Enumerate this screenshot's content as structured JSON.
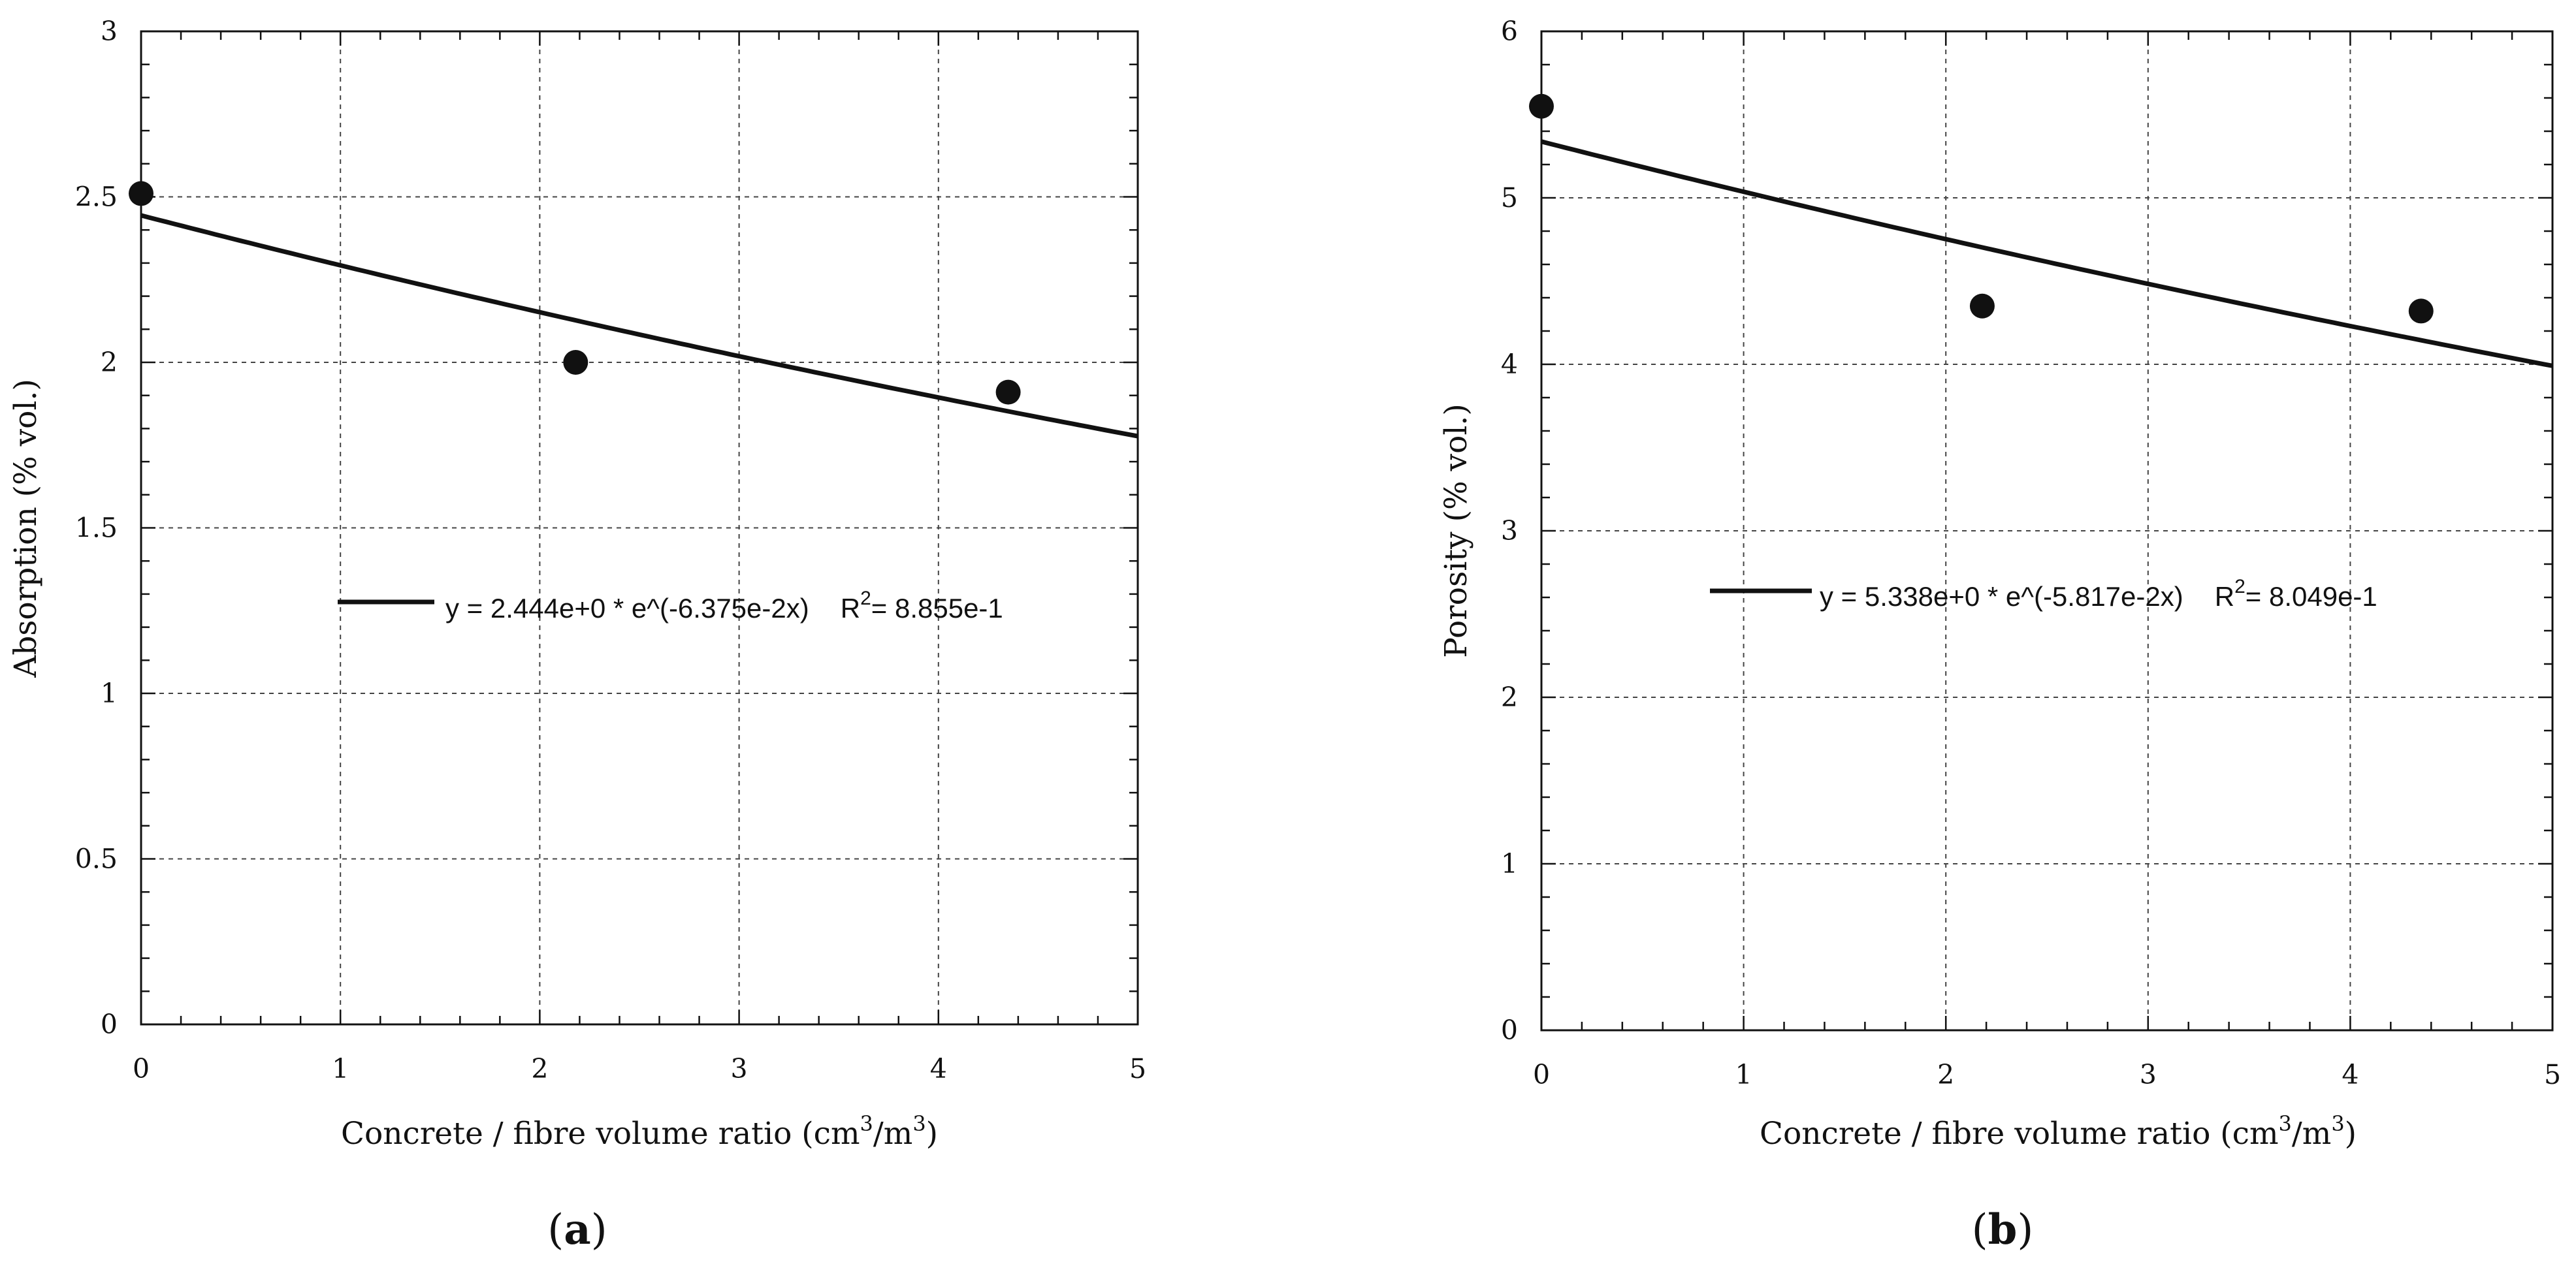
{
  "chart_data": [
    {
      "id": "a",
      "type": "scatter",
      "caption_open": "(",
      "caption_letter": "a",
      "caption_close": ")",
      "xlabel_prefix": "Concrete / fibre volume ratio (cm",
      "xlabel_sup1": "3",
      "xlabel_mid": "/m",
      "xlabel_sup2": "3",
      "xlabel_suffix": ")",
      "ylabel": "Absorption (% vol.)",
      "xlim": [
        0,
        5
      ],
      "ylim": [
        0,
        3
      ],
      "xticks": [
        0,
        1,
        2,
        3,
        4,
        5
      ],
      "yticks": [
        0,
        0.5,
        1,
        1.5,
        2,
        2.5,
        3
      ],
      "xtick_labels": [
        "0",
        "1",
        "2",
        "3",
        "4",
        "5"
      ],
      "ytick_labels": [
        "0",
        "0.5",
        "1",
        "1.5",
        "2",
        "2.5",
        "3"
      ],
      "grid": true,
      "points": [
        {
          "x": 0,
          "y": 2.51
        },
        {
          "x": 2.18,
          "y": 2.0
        },
        {
          "x": 4.35,
          "y": 1.91
        }
      ],
      "fit": {
        "model": "exponential",
        "a": 2.444,
        "b": -0.06375
      },
      "legend_equation": "y = 2.444e+0 * e^(-6.375e-2x)",
      "legend_r_prefix": "R",
      "legend_r_sup": "2",
      "legend_r_value": "= 8.855e-1"
    },
    {
      "id": "b",
      "type": "scatter",
      "caption_open": "(",
      "caption_letter": "b",
      "caption_close": ")",
      "xlabel_prefix": "Concrete / fibre volume ratio (cm",
      "xlabel_sup1": "3",
      "xlabel_mid": "/m",
      "xlabel_sup2": "3",
      "xlabel_suffix": ")",
      "ylabel": "Porosity (% vol.)",
      "xlim": [
        0,
        5
      ],
      "ylim": [
        0,
        6
      ],
      "xticks": [
        0,
        1,
        2,
        3,
        4,
        5
      ],
      "yticks": [
        0,
        1,
        2,
        3,
        4,
        5,
        6
      ],
      "xtick_labels": [
        "0",
        "1",
        "2",
        "3",
        "4",
        "5"
      ],
      "ytick_labels": [
        "0",
        "1",
        "2",
        "3",
        "4",
        "5",
        "6"
      ],
      "grid": true,
      "points": [
        {
          "x": 0,
          "y": 5.55
        },
        {
          "x": 2.18,
          "y": 4.35
        },
        {
          "x": 4.35,
          "y": 4.32
        }
      ],
      "fit": {
        "model": "exponential",
        "a": 5.338,
        "b": -0.05817
      },
      "legend_equation": "y = 5.338e+0 * e^(-5.817e-2x)",
      "legend_r_prefix": "R",
      "legend_r_sup": "2",
      "legend_r_value": "= 8.049e-1"
    }
  ]
}
